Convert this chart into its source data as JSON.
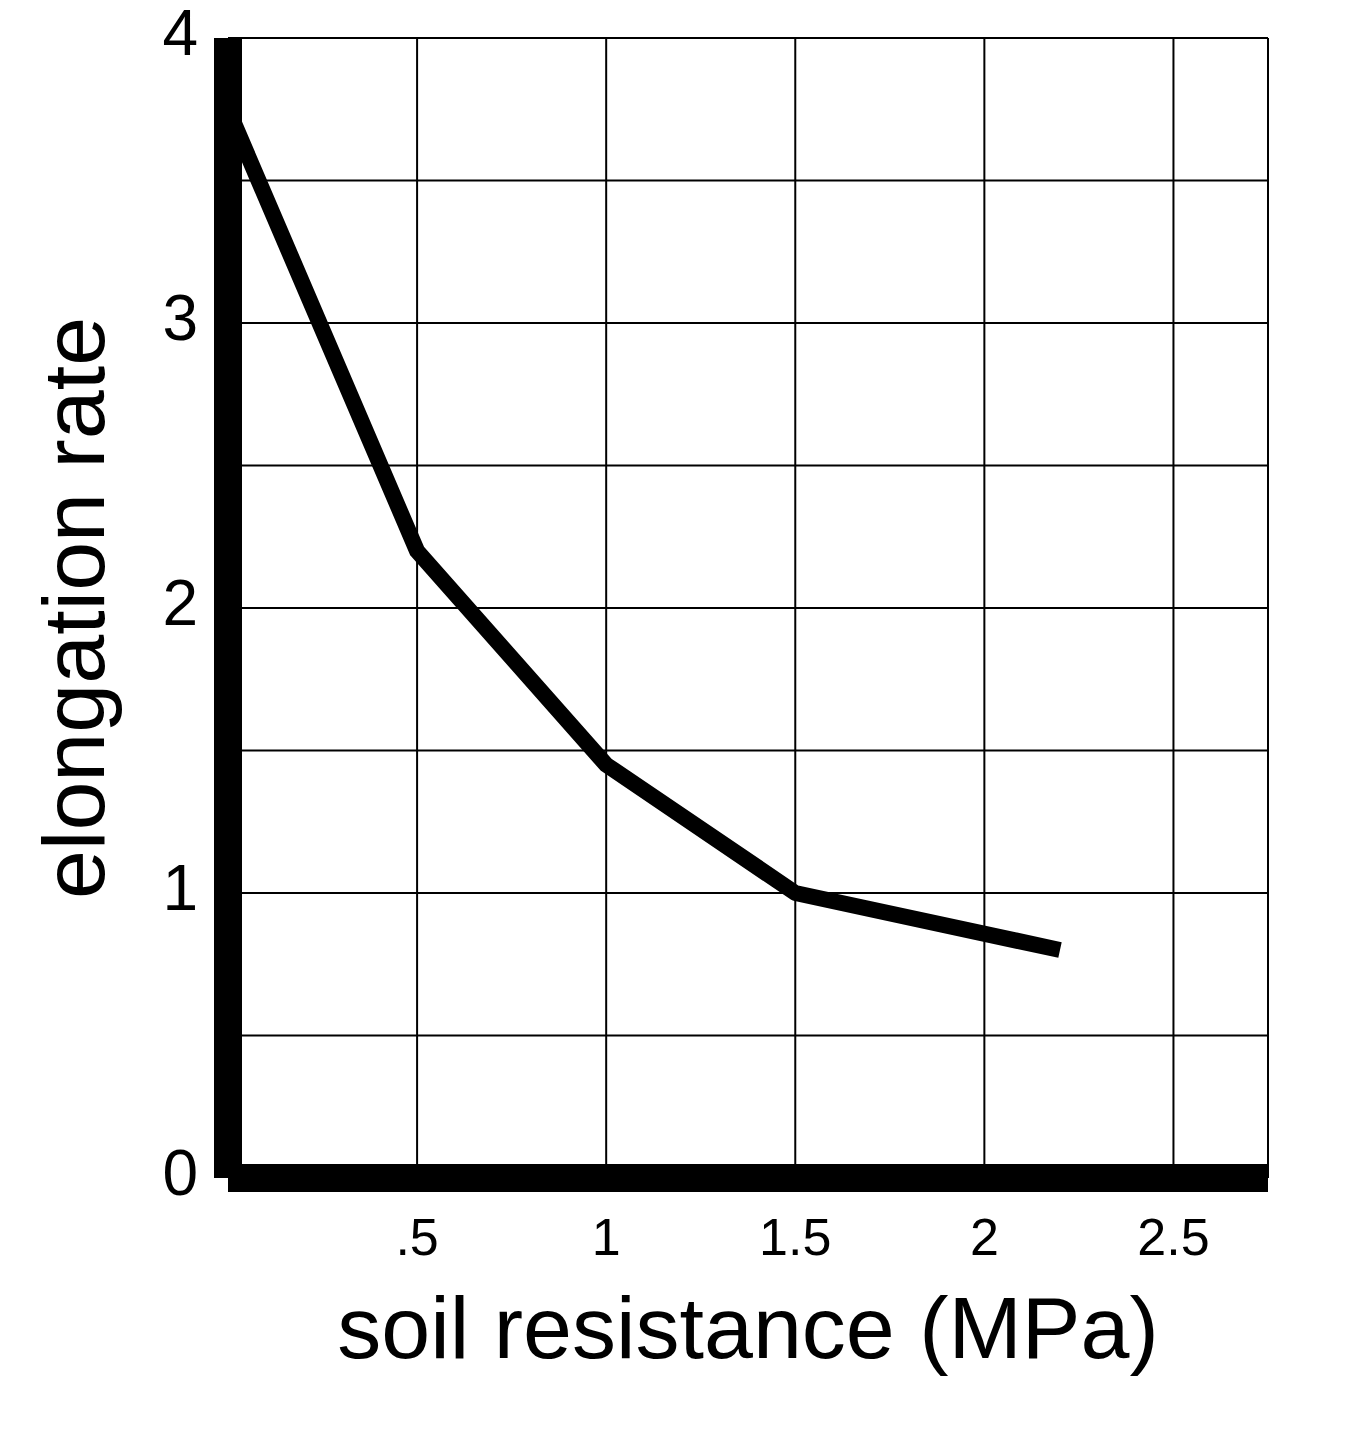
{
  "chart_data": {
    "type": "line",
    "xlabel": "soil resistance  (MPa)",
    "ylabel": "elongation  rate",
    "x": [
      0,
      0.5,
      1,
      1.5,
      2.2
    ],
    "series": [
      {
        "color": "#000000",
        "values": [
          3.75,
          2.2,
          1.45,
          1.0,
          0.8
        ]
      }
    ],
    "xlim": [
      0,
      2.75
    ],
    "xticks": [
      {
        "value": 0.5,
        "label": ".5"
      },
      1,
      1.5,
      2,
      2.5
    ],
    "ylim": [
      0,
      4
    ],
    "yticks": [
      0,
      {
        "value": 0.5,
        "label": null
      },
      1,
      {
        "value": 1.5,
        "label": null
      },
      2,
      {
        "value": 2.5,
        "label": null
      },
      3,
      {
        "value": 3.5,
        "label": null
      },
      4
    ],
    "grid": true,
    "marker": "none",
    "line_style": "solid"
  }
}
